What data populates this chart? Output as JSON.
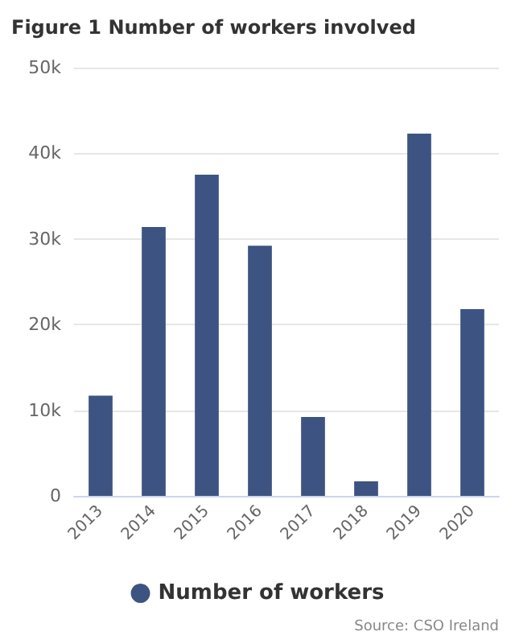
{
  "chart_data": {
    "type": "bar",
    "title": "Figure 1 Number of workers involved",
    "categories": [
      "2013",
      "2014",
      "2015",
      "2016",
      "2017",
      "2018",
      "2019",
      "2020"
    ],
    "series": [
      {
        "name": "Number of workers",
        "color": "#3d5381",
        "values": [
          11700,
          31400,
          37500,
          29200,
          9200,
          1700,
          42300,
          21800
        ]
      }
    ],
    "ylim": [
      0,
      50000
    ],
    "yticks": [
      {
        "value": 0,
        "label": "0"
      },
      {
        "value": 10000,
        "label": "10k"
      },
      {
        "value": 20000,
        "label": "20k"
      },
      {
        "value": 30000,
        "label": "30k"
      },
      {
        "value": 40000,
        "label": "40k"
      },
      {
        "value": 50000,
        "label": "50k"
      }
    ],
    "grid": "y",
    "legend": "bottom",
    "annotations": [
      "Source: CSO Ireland"
    ]
  }
}
